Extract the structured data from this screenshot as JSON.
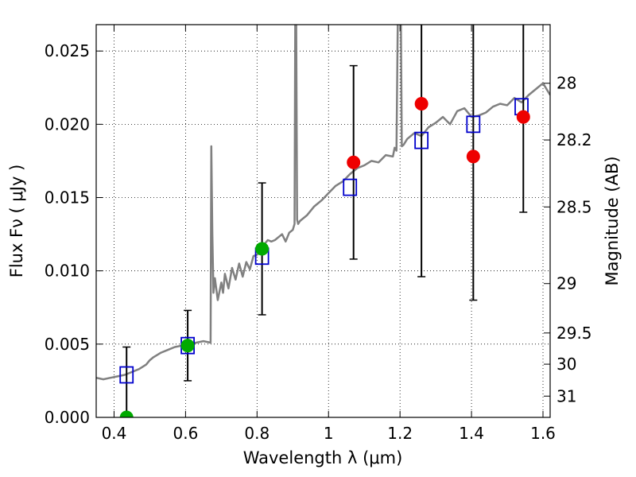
{
  "chart_data": {
    "type": "line",
    "xlabel": "Wavelength  λ (μm)",
    "ylabel": "Flux  Fν  ( μJy )",
    "y2label": "Magnitude (AB)",
    "xlim": [
      0.35,
      1.62
    ],
    "ylim": [
      0.0,
      0.0268
    ],
    "grid": true,
    "x_ticks": [
      0.4,
      0.6,
      0.8,
      1.0,
      1.2,
      1.4,
      1.6
    ],
    "x_tick_labels": [
      "0.4",
      "0.6",
      "0.8",
      "1",
      "1.2",
      "1.4",
      "1.6"
    ],
    "y_ticks": [
      0.0,
      0.005,
      0.01,
      0.015,
      0.02,
      0.025
    ],
    "y_tick_labels": [
      "0.000",
      "0.005",
      "0.010",
      "0.015",
      "0.020",
      "0.025"
    ],
    "y2_ticks": [
      {
        "label": "28",
        "flux": 0.0228
      },
      {
        "label": "28.2",
        "flux": 0.01893
      },
      {
        "label": "28.5",
        "flux": 0.01436
      },
      {
        "label": "29",
        "flux": 0.00913
      },
      {
        "label": "29.5",
        "flux": 0.00576
      },
      {
        "label": "30",
        "flux": 0.00363
      },
      {
        "label": "31",
        "flux": 0.00145
      }
    ],
    "colors": {
      "model": "#808080",
      "model_photometry": "#0000cc",
      "detections": "#00aa00",
      "non_detections": "#ee0000",
      "errorbars": "#000000"
    },
    "series": [
      {
        "kind": "model_spectrum",
        "x": [
          0.35,
          0.37,
          0.39,
          0.41,
          0.43,
          0.45,
          0.47,
          0.49,
          0.5,
          0.51,
          0.53,
          0.55,
          0.57,
          0.59,
          0.61,
          0.63,
          0.65,
          0.67,
          0.672,
          0.675,
          0.678,
          0.682,
          0.69,
          0.7,
          0.705,
          0.71,
          0.72,
          0.73,
          0.74,
          0.75,
          0.76,
          0.77,
          0.78,
          0.79,
          0.8,
          0.81,
          0.82,
          0.83,
          0.84,
          0.85,
          0.86,
          0.87,
          0.88,
          0.89,
          0.9,
          0.905,
          0.908,
          0.912,
          0.915,
          0.92,
          0.94,
          0.96,
          0.98,
          1.0,
          1.02,
          1.04,
          1.06,
          1.08,
          1.1,
          1.12,
          1.14,
          1.16,
          1.18,
          1.185,
          1.19,
          1.195,
          1.2,
          1.205,
          1.21,
          1.22,
          1.24,
          1.26,
          1.28,
          1.3,
          1.32,
          1.34,
          1.36,
          1.38,
          1.4,
          1.42,
          1.44,
          1.46,
          1.48,
          1.5,
          1.52,
          1.54,
          1.56,
          1.58,
          1.6,
          1.62
        ],
        "y": [
          0.0027,
          0.0026,
          0.0027,
          0.0028,
          0.0029,
          0.0031,
          0.0033,
          0.0036,
          0.0039,
          0.0041,
          0.0044,
          0.0046,
          0.0048,
          0.0049,
          0.005,
          0.0051,
          0.0052,
          0.0051,
          0.0185,
          0.0125,
          0.0085,
          0.0095,
          0.008,
          0.0092,
          0.0085,
          0.0098,
          0.0088,
          0.0102,
          0.0094,
          0.0105,
          0.0096,
          0.0106,
          0.0101,
          0.011,
          0.0111,
          0.0113,
          0.0118,
          0.0121,
          0.012,
          0.0121,
          0.0123,
          0.0125,
          0.012,
          0.0126,
          0.0128,
          0.0132,
          0.035,
          0.0135,
          0.0132,
          0.0134,
          0.0138,
          0.0144,
          0.0148,
          0.0153,
          0.0158,
          0.0161,
          0.0166,
          0.017,
          0.0172,
          0.0175,
          0.0174,
          0.0179,
          0.0178,
          0.0184,
          0.0182,
          0.03,
          0.035,
          0.0185,
          0.0186,
          0.019,
          0.0194,
          0.0192,
          0.0198,
          0.0201,
          0.0205,
          0.02,
          0.0209,
          0.0211,
          0.0205,
          0.0206,
          0.0208,
          0.0212,
          0.0214,
          0.0213,
          0.0218,
          0.0215,
          0.022,
          0.0224,
          0.0228,
          0.022
        ]
      },
      {
        "kind": "model_photometry",
        "marker": "open-square",
        "x": [
          0.435,
          0.606,
          0.814,
          1.06,
          1.26,
          1.405,
          1.54
        ],
        "y": [
          0.0029,
          0.0049,
          0.011,
          0.0157,
          0.0189,
          0.02,
          0.0212
        ]
      },
      {
        "kind": "detections",
        "marker": "filled-circle",
        "x": [
          0.435,
          0.606,
          0.814
        ],
        "y": [
          0.0,
          0.0049,
          0.0115
        ],
        "yerr": [
          0.0048,
          0.0024,
          0.0045
        ]
      },
      {
        "kind": "non_detections",
        "marker": "filled-circle",
        "x": [
          1.07,
          1.26,
          1.405,
          1.545
        ],
        "y": [
          0.0174,
          0.0214,
          0.0178,
          0.0205
        ],
        "err_low": [
          0.0066,
          0.0118,
          0.0098,
          0.0065
        ],
        "err_high": [
          0.0066,
          0.0118,
          0.0098,
          0.0065
        ]
      }
    ]
  }
}
